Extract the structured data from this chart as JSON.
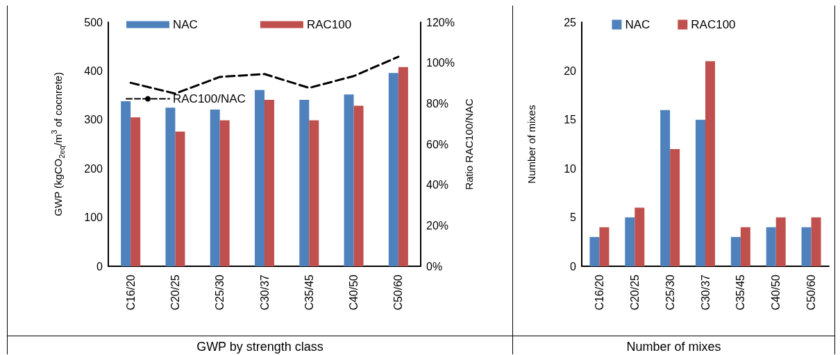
{
  "chart_data": [
    {
      "type": "bar",
      "categories": [
        "C16/20",
        "C20/25",
        "C25/30",
        "C30/37",
        "C35/45",
        "C40/50",
        "C50/60"
      ],
      "ylabel": "GWP (kgCO$_{2eq}$/m$^{3}$ of cocnrete)",
      "y2label": "Ratio RAC100/NAC",
      "ylim": [
        0,
        500
      ],
      "yticks": [
        0,
        100,
        200,
        300,
        400,
        500
      ],
      "y2lim": [
        0,
        120
      ],
      "y2ticks": [
        {
          "value": 0,
          "label": "0%"
        },
        {
          "value": 20,
          "label": "20%"
        },
        {
          "value": 40,
          "label": "40%"
        },
        {
          "value": 60,
          "label": "60%"
        },
        {
          "value": 80,
          "label": "80%"
        },
        {
          "value": 100,
          "label": "100%"
        },
        {
          "value": 120,
          "label": "120%"
        }
      ],
      "legend": "top left",
      "annotations": [
        "GWP by strength class"
      ],
      "series": [
        {
          "name": "NAC",
          "color": "#4f81bd",
          "values": [
            338,
            325,
            321,
            361,
            341,
            352,
            396
          ]
        },
        {
          "name": "RAC100",
          "color": "#c0504d",
          "values": [
            305,
            276,
            299,
            341,
            299,
            329,
            408
          ]
        },
        {
          "name": "RAC100/NAC",
          "type": "line",
          "axis": "y2",
          "color": "#000000",
          "line_style": "dashed",
          "marker": "none",
          "values": [
            90.2,
            84.9,
            93.1,
            94.5,
            87.7,
            93.5,
            103
          ]
        }
      ]
    },
    {
      "type": "bar",
      "categories": [
        "C16/20",
        "C20/25",
        "C25/30",
        "C30/37",
        "C35/45",
        "C40/50",
        "C50/60"
      ],
      "ylabel": "Number of mixes",
      "ylim": [
        0,
        25
      ],
      "yticks": [
        0,
        5,
        10,
        15,
        20,
        25
      ],
      "legend": "top",
      "annotations": [
        "Number of mixes"
      ],
      "series": [
        {
          "name": "NAC",
          "color": "#4f81bd",
          "values": [
            3,
            5,
            16,
            15,
            3,
            4,
            4
          ]
        },
        {
          "name": "RAC100",
          "color": "#c0504d",
          "values": [
            4,
            6,
            12,
            21,
            4,
            5,
            5
          ]
        }
      ]
    }
  ]
}
